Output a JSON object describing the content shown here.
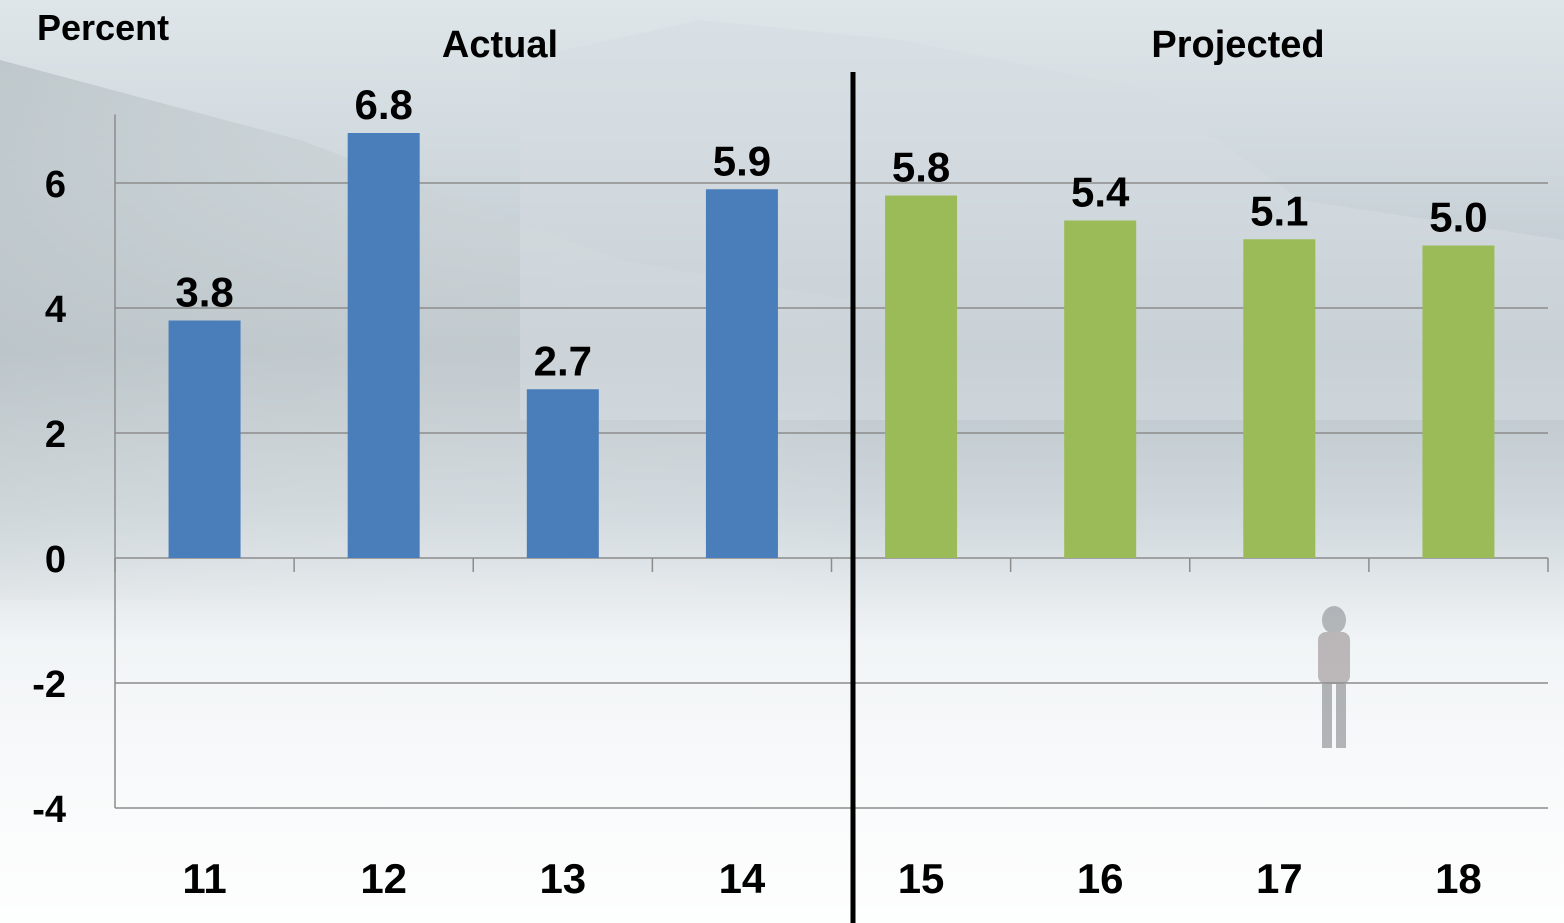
{
  "chart_data": {
    "type": "bar",
    "ylabel": "Percent",
    "ylim": [
      -4,
      7
    ],
    "yticks": [
      -4,
      -2,
      0,
      2,
      4,
      6
    ],
    "grid": true,
    "groups": [
      {
        "label": "Actual",
        "categories": [
          "11",
          "12",
          "13",
          "14"
        ]
      },
      {
        "label": "Projected",
        "categories": [
          "15",
          "16",
          "17",
          "18"
        ]
      }
    ],
    "categories": [
      "11",
      "12",
      "13",
      "14",
      "15",
      "16",
      "17",
      "18"
    ],
    "values": [
      3.8,
      6.8,
      2.7,
      5.9,
      5.8,
      5.4,
      5.1,
      5.0
    ],
    "data_labels": [
      "3.8",
      "6.8",
      "2.7",
      "5.9",
      "5.8",
      "5.4",
      "5.1",
      "5.0"
    ],
    "colors": {
      "actual": "#4a7ebb",
      "projected": "#9bbb59",
      "grid": "#8c8c8c",
      "divider": "#000000"
    }
  }
}
